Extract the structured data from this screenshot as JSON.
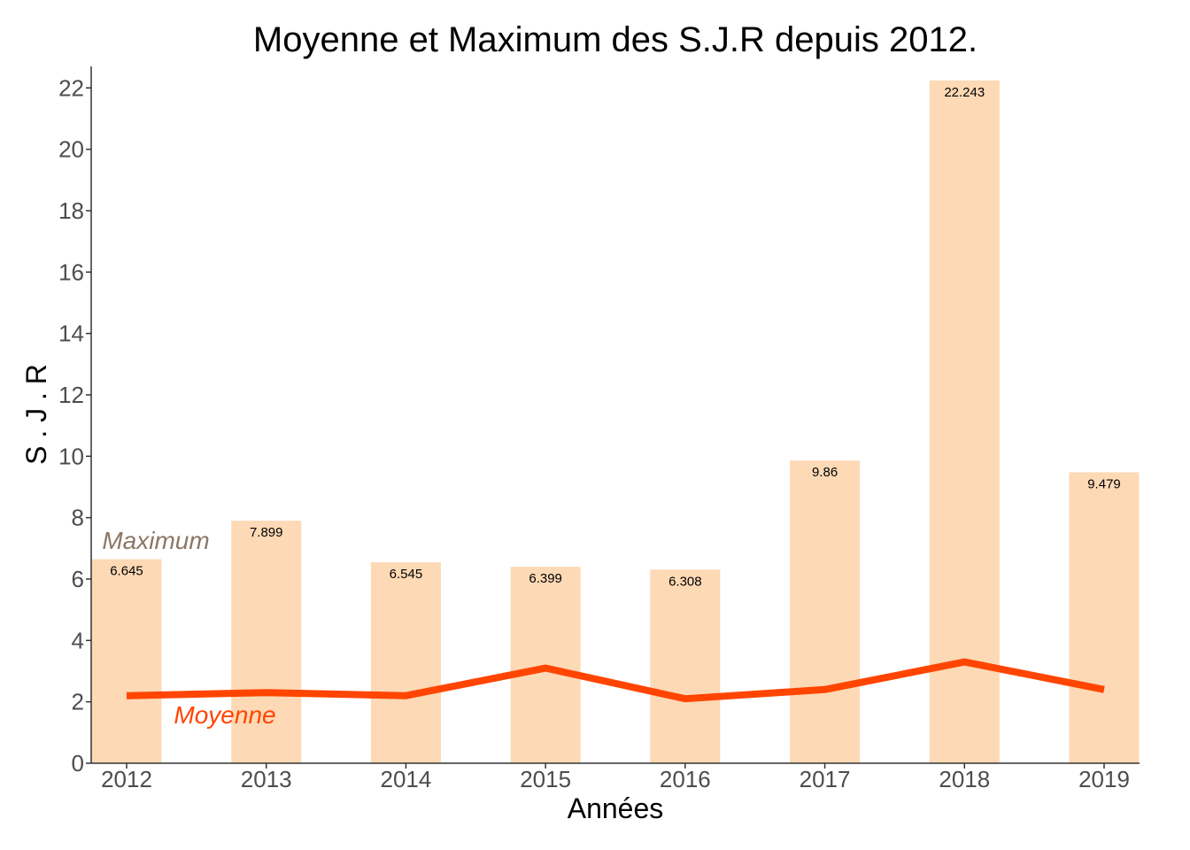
{
  "chart_data": {
    "type": "bar",
    "title": "Moyenne et Maximum des S.J.R depuis 2012.",
    "xlabel": "Années",
    "ylabel": "S . J . R",
    "categories": [
      "2012",
      "2013",
      "2014",
      "2015",
      "2016",
      "2017",
      "2018",
      "2019"
    ],
    "ylim": [
      0,
      22.7
    ],
    "yticks": [
      0,
      2,
      4,
      6,
      8,
      10,
      12,
      14,
      16,
      18,
      20,
      22
    ],
    "grid": false,
    "legend": "none",
    "series": [
      {
        "name": "Maximum",
        "type": "bar",
        "color": "#fdd9b5",
        "values": [
          6.645,
          7.899,
          6.545,
          6.399,
          6.308,
          9.86,
          22.243,
          9.479
        ],
        "labels": [
          "6.645",
          "7.899",
          "6.545",
          "6.399",
          "6.308",
          "9.86",
          "22.243",
          "9.479"
        ]
      },
      {
        "name": "Moyenne",
        "type": "line",
        "color": "#ff4500",
        "values": [
          2.2,
          2.3,
          2.2,
          3.1,
          2.1,
          2.4,
          3.3,
          2.4
        ]
      }
    ],
    "annotations": [
      {
        "text": "Maximum",
        "color": "#8b7765",
        "near": "2012"
      },
      {
        "text": "Moyenne",
        "color": "#ff4500",
        "near": "2012-2013"
      }
    ]
  }
}
